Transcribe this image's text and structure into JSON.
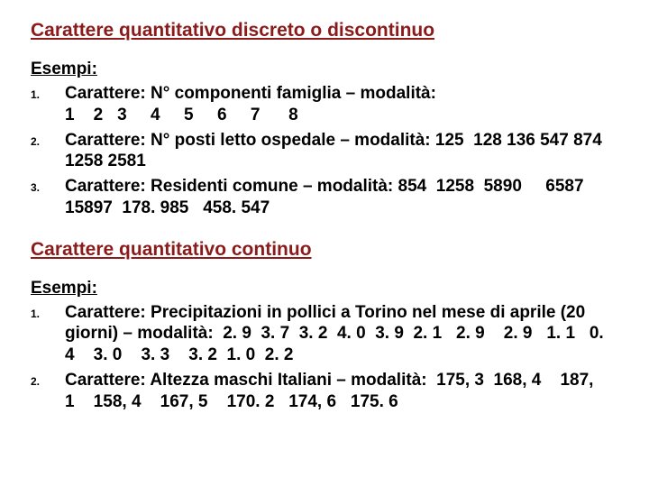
{
  "colors": {
    "heading": "#8b1a1a",
    "text": "#000000",
    "background": "#ffffff"
  },
  "typography": {
    "heading_fontsize": 21,
    "body_fontsize": 19,
    "marker_fontsize": 12,
    "font_family": "Arial",
    "font_weight": "bold"
  },
  "sections": [
    {
      "title": "Carattere quantitativo discreto o discontinuo",
      "esempi_label": "Esempi:",
      "items": [
        {
          "marker": "1.",
          "text": "Carattere: N° componenti famiglia – modalità: 1    2   3     4     5     6     7      8"
        },
        {
          "marker": "2.",
          "text": "Carattere: N° posti letto ospedale – modalità: 125  128 136 547 874 1258 2581"
        },
        {
          "marker": "3.",
          "text": "Carattere: Residenti comune – modalità: 854  1258  5890     6587  15897  178. 985   458. 547"
        }
      ]
    },
    {
      "title": "Carattere quantitativo continuo",
      "esempi_label": "Esempi:",
      "items": [
        {
          "marker": "1.",
          "text": "Carattere: Precipitazioni in pollici a Torino nel mese di aprile (20 giorni) – modalità:  2. 9  3. 7  3. 2  4. 0  3. 9  2. 1   2. 9    2. 9   1. 1   0. 4    3. 0    3. 3    3. 2  1. 0  2. 2"
        },
        {
          "marker": "2.",
          "text": "Carattere: Altezza maschi Italiani – modalità:  175, 3  168, 4    187, 1    158, 4    167, 5    170. 2   174, 6   175. 6"
        }
      ]
    }
  ]
}
